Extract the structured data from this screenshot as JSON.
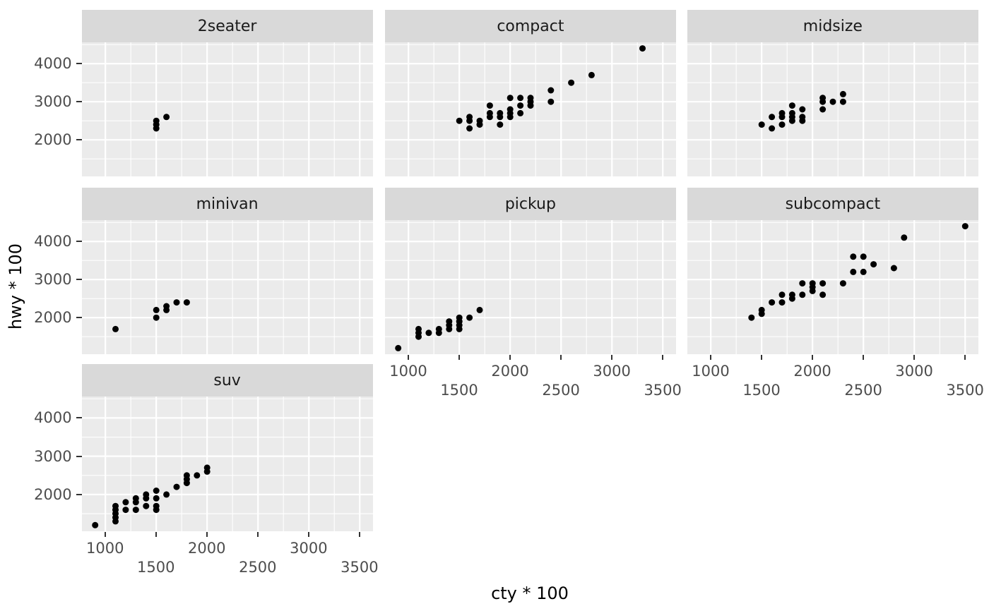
{
  "chart_data": {
    "type": "scatter",
    "title": "",
    "xlabel": "cty * 100",
    "ylabel": "hwy * 100",
    "facet_labels": [
      "2seater",
      "compact",
      "midsize",
      "minivan",
      "pickup",
      "subcompact",
      "suv"
    ],
    "x_domain": [
      770,
      3630
    ],
    "y_domain": [
      1040,
      4560
    ],
    "x_major_ticks": [
      1000,
      1500,
      2000,
      2500,
      3000,
      3500
    ],
    "x_minor_ticks": [
      1250,
      1750,
      2250,
      2750,
      3250
    ],
    "y_major_ticks": [
      2000,
      3000,
      4000
    ],
    "y_minor_ticks": [
      1500,
      2500,
      3500,
      4500
    ],
    "x_tick_label_rows": [
      [
        1000,
        2000,
        3000
      ],
      [
        1500,
        2500,
        3500
      ]
    ],
    "grid": "on",
    "legend": "none",
    "colors": {
      "background": "#FFFFFF",
      "panel_bg": "#EBEBEB",
      "strip_bg": "#D9D9D9",
      "grid_line": "#FFFFFF",
      "point": "#000000",
      "tick_label": "#4D4D4D",
      "strip_text": "#1A1A1A",
      "axis_title": "#000000",
      "tick_mark": "#333333"
    },
    "facets": [
      {
        "label": "2seater",
        "points": [
          [
            1500,
            2500
          ],
          [
            1500,
            2400
          ],
          [
            1500,
            2300
          ],
          [
            1600,
            2600
          ]
        ]
      },
      {
        "label": "compact",
        "points": [
          [
            1500,
            2500
          ],
          [
            1600,
            2600
          ],
          [
            1600,
            2500
          ],
          [
            1600,
            2300
          ],
          [
            1700,
            2500
          ],
          [
            1700,
            2400
          ],
          [
            1800,
            2900
          ],
          [
            1800,
            2700
          ],
          [
            1800,
            2600
          ],
          [
            1900,
            2700
          ],
          [
            1900,
            2600
          ],
          [
            1900,
            2400
          ],
          [
            2000,
            3100
          ],
          [
            2000,
            2800
          ],
          [
            2000,
            2700
          ],
          [
            2000,
            2600
          ],
          [
            2100,
            3100
          ],
          [
            2100,
            2900
          ],
          [
            2100,
            2700
          ],
          [
            2200,
            3100
          ],
          [
            2200,
            3000
          ],
          [
            2200,
            2900
          ],
          [
            2400,
            3300
          ],
          [
            2400,
            3000
          ],
          [
            2600,
            3500
          ],
          [
            2800,
            3700
          ],
          [
            3300,
            4400
          ]
        ]
      },
      {
        "label": "midsize",
        "points": [
          [
            1500,
            2400
          ],
          [
            1600,
            2600
          ],
          [
            1600,
            2300
          ],
          [
            1700,
            2700
          ],
          [
            1700,
            2600
          ],
          [
            1700,
            2400
          ],
          [
            1800,
            2900
          ],
          [
            1800,
            2700
          ],
          [
            1800,
            2600
          ],
          [
            1800,
            2500
          ],
          [
            1900,
            2800
          ],
          [
            1900,
            2600
          ],
          [
            1900,
            2500
          ],
          [
            2100,
            3100
          ],
          [
            2100,
            3000
          ],
          [
            2100,
            2800
          ],
          [
            2200,
            3000
          ],
          [
            2300,
            3200
          ],
          [
            2300,
            3000
          ]
        ]
      },
      {
        "label": "minivan",
        "points": [
          [
            1100,
            1700
          ],
          [
            1500,
            2200
          ],
          [
            1500,
            2000
          ],
          [
            1600,
            2300
          ],
          [
            1600,
            2200
          ],
          [
            1700,
            2400
          ],
          [
            1800,
            2400
          ]
        ]
      },
      {
        "label": "pickup",
        "points": [
          [
            900,
            1200
          ],
          [
            1100,
            1700
          ],
          [
            1100,
            1600
          ],
          [
            1100,
            1500
          ],
          [
            1200,
            1600
          ],
          [
            1300,
            1700
          ],
          [
            1300,
            1600
          ],
          [
            1400,
            1900
          ],
          [
            1400,
            1800
          ],
          [
            1400,
            1700
          ],
          [
            1500,
            2000
          ],
          [
            1500,
            1900
          ],
          [
            1500,
            1800
          ],
          [
            1500,
            1700
          ],
          [
            1600,
            2000
          ],
          [
            1700,
            2200
          ]
        ]
      },
      {
        "label": "subcompact",
        "points": [
          [
            1400,
            2000
          ],
          [
            1500,
            2200
          ],
          [
            1500,
            2100
          ],
          [
            1600,
            2400
          ],
          [
            1700,
            2600
          ],
          [
            1700,
            2400
          ],
          [
            1800,
            2600
          ],
          [
            1800,
            2500
          ],
          [
            1900,
            2900
          ],
          [
            1900,
            2600
          ],
          [
            2000,
            2900
          ],
          [
            2000,
            2800
          ],
          [
            2000,
            2700
          ],
          [
            2100,
            2900
          ],
          [
            2100,
            2600
          ],
          [
            2300,
            2900
          ],
          [
            2400,
            3600
          ],
          [
            2400,
            3200
          ],
          [
            2500,
            3600
          ],
          [
            2500,
            3200
          ],
          [
            2600,
            3400
          ],
          [
            2800,
            3300
          ],
          [
            2900,
            4100
          ],
          [
            3500,
            4400
          ]
        ]
      },
      {
        "label": "suv",
        "points": [
          [
            900,
            1200
          ],
          [
            1100,
            1700
          ],
          [
            1100,
            1600
          ],
          [
            1100,
            1500
          ],
          [
            1100,
            1400
          ],
          [
            1100,
            1300
          ],
          [
            1200,
            1800
          ],
          [
            1200,
            1600
          ],
          [
            1300,
            1900
          ],
          [
            1300,
            1800
          ],
          [
            1300,
            1600
          ],
          [
            1400,
            2000
          ],
          [
            1400,
            1900
          ],
          [
            1400,
            1700
          ],
          [
            1500,
            2100
          ],
          [
            1500,
            1900
          ],
          [
            1500,
            1700
          ],
          [
            1500,
            1600
          ],
          [
            1600,
            2000
          ],
          [
            1700,
            2200
          ],
          [
            1800,
            2500
          ],
          [
            1800,
            2400
          ],
          [
            1800,
            2300
          ],
          [
            1900,
            2500
          ],
          [
            2000,
            2700
          ],
          [
            2000,
            2600
          ]
        ]
      }
    ]
  }
}
